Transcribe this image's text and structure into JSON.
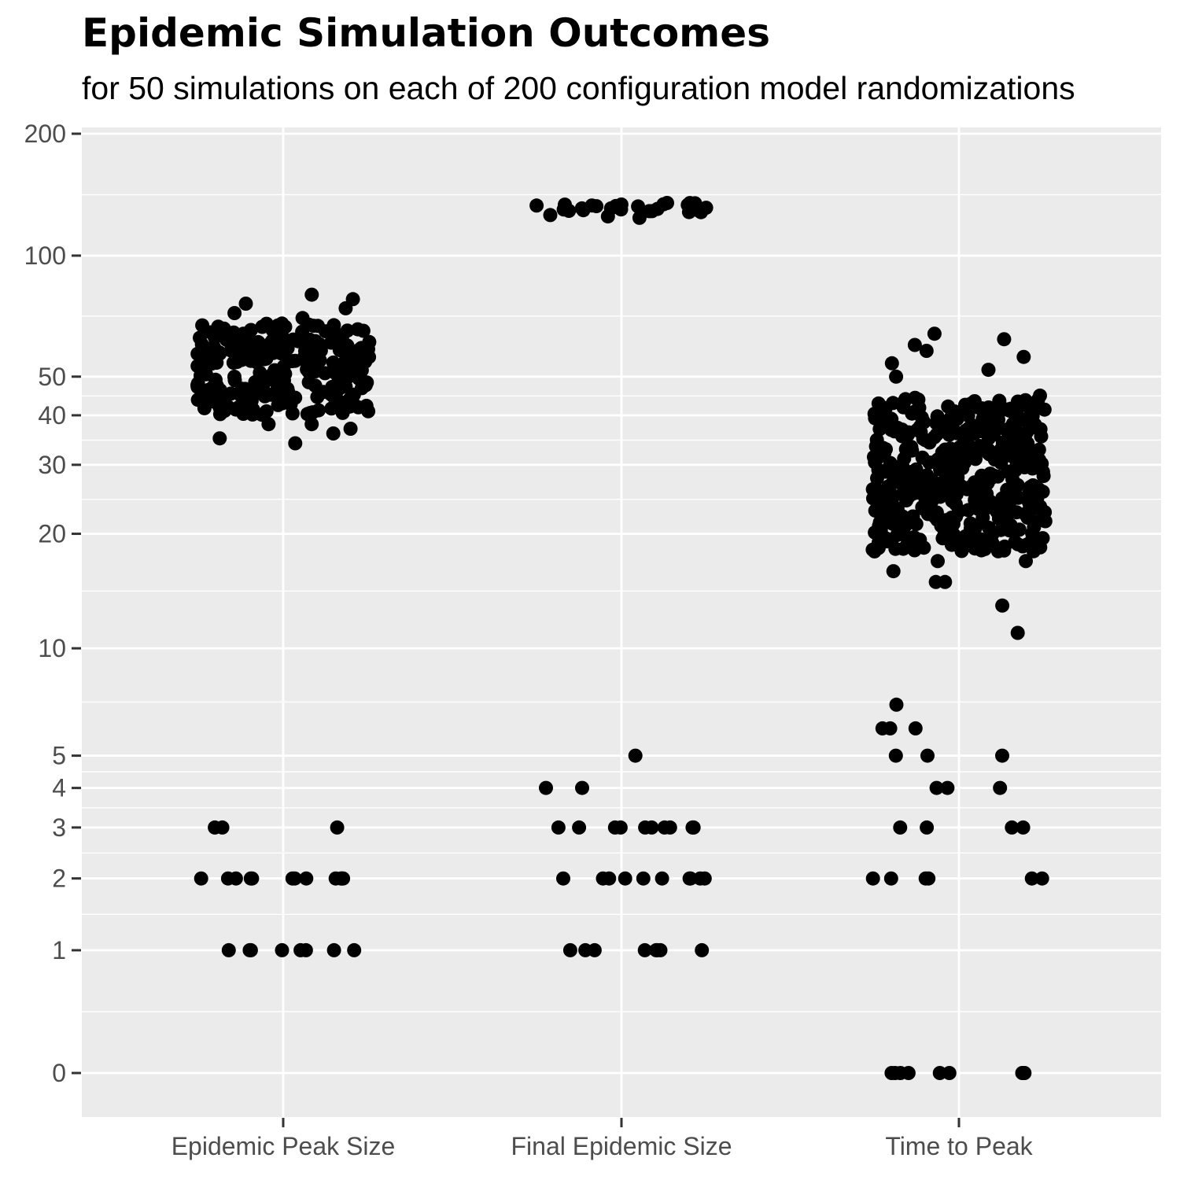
{
  "chart_data": {
    "type": "scatter",
    "title": "Epidemic Simulation Outcomes",
    "subtitle": "for 50 simulations on each of 200 configuration model randomizations",
    "xlabel": "",
    "ylabel": "",
    "categories": [
      "Epidemic Peak Size",
      "Final Epidemic Size",
      "Time to Peak"
    ],
    "y_scale": "log(1 + y)",
    "y_ticks": [
      0,
      1,
      2,
      3,
      4,
      5,
      10,
      20,
      30,
      40,
      50,
      100,
      200
    ],
    "y_tick_labels": [
      "0",
      "1",
      "2",
      "3",
      "4",
      "5",
      "10",
      "20",
      "30",
      "40",
      "50",
      "100",
      "200"
    ],
    "ylim": [
      0,
      200
    ],
    "grid": true,
    "legend": "none",
    "colors": {
      "panel": "#ebebeb",
      "grid": "#ffffff",
      "point": "#000000",
      "tick_text": "#4d4d4d"
    },
    "series": [
      {
        "category": "Epidemic Peak Size",
        "bulk_range": [
          40,
          68
        ],
        "values": [
          1,
          1,
          1,
          1,
          1,
          1,
          1,
          1,
          2,
          2,
          2,
          2,
          2,
          2,
          2,
          2,
          2,
          2,
          2,
          2,
          3,
          3,
          3,
          38,
          36,
          35,
          34,
          38,
          37,
          70,
          72,
          74,
          76,
          78,
          80
        ]
      },
      {
        "category": "Final Epidemic Size",
        "bulk_range": [
          128,
          135
        ],
        "values": [
          1,
          1,
          1,
          1,
          1,
          1,
          1,
          1,
          2,
          2,
          2,
          2,
          2,
          2,
          2,
          2,
          2,
          2,
          3,
          3,
          3,
          3,
          3,
          3,
          3,
          3,
          3,
          3,
          4,
          4,
          5,
          124,
          125,
          126
        ]
      },
      {
        "category": "Time to Peak",
        "bulk_range": [
          18,
          45
        ],
        "values": [
          0,
          0,
          0,
          0,
          0,
          0,
          0,
          0,
          2,
          2,
          2,
          2,
          2,
          2,
          3,
          3,
          3,
          3,
          4,
          4,
          4,
          5,
          5,
          5,
          6,
          6,
          6,
          7,
          11,
          13,
          15,
          15,
          16,
          17,
          17,
          50,
          52,
          54,
          56,
          58,
          60,
          62,
          64
        ]
      }
    ]
  }
}
